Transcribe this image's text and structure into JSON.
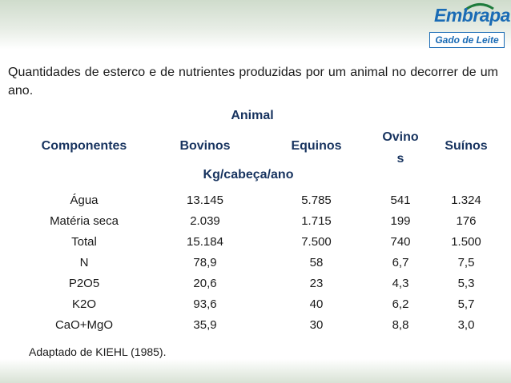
{
  "header": {
    "logo_text": "Embrapa",
    "logo_subtitle": "Gado de Leite",
    "brand_color": "#1a6bb5",
    "accent_color": "#1e7b3c"
  },
  "description": "Quantidades de esterco e de nutrientes produzidas por um animal no decorrer de um ano.",
  "table": {
    "group_header": "Animal",
    "unit_header": "Kg/cabeça/ano",
    "columns": {
      "componentes": "Componentes",
      "bovinos": "Bovinos",
      "equinos": "Equinos",
      "ovinos_line1": "Ovino",
      "ovinos_line2": "s",
      "suinos": "Suínos"
    },
    "rows": [
      {
        "componente": "Água",
        "bovinos": "13.145",
        "equinos": "5.785",
        "ovinos": "541",
        "suinos": "1.324"
      },
      {
        "componente": "Matéria seca",
        "bovinos": "2.039",
        "equinos": "1.715",
        "ovinos": "199",
        "suinos": "176"
      },
      {
        "componente": "Total",
        "bovinos": "15.184",
        "equinos": "7.500",
        "ovinos": "740",
        "suinos": "1.500"
      },
      {
        "componente": "N",
        "bovinos": "78,9",
        "equinos": "58",
        "ovinos": "6,7",
        "suinos": "7,5"
      },
      {
        "componente": "P2O5",
        "bovinos": "20,6",
        "equinos": "23",
        "ovinos": "4,3",
        "suinos": "5,3"
      },
      {
        "componente": "K2O",
        "bovinos": "93,6",
        "equinos": "40",
        "ovinos": "6,2",
        "suinos": "5,7"
      },
      {
        "componente": "CaO+MgO",
        "bovinos": "35,9",
        "equinos": "30",
        "ovinos": "8,8",
        "suinos": "3,0"
      }
    ]
  },
  "source": "Adaptado de KIEHL (1985)."
}
